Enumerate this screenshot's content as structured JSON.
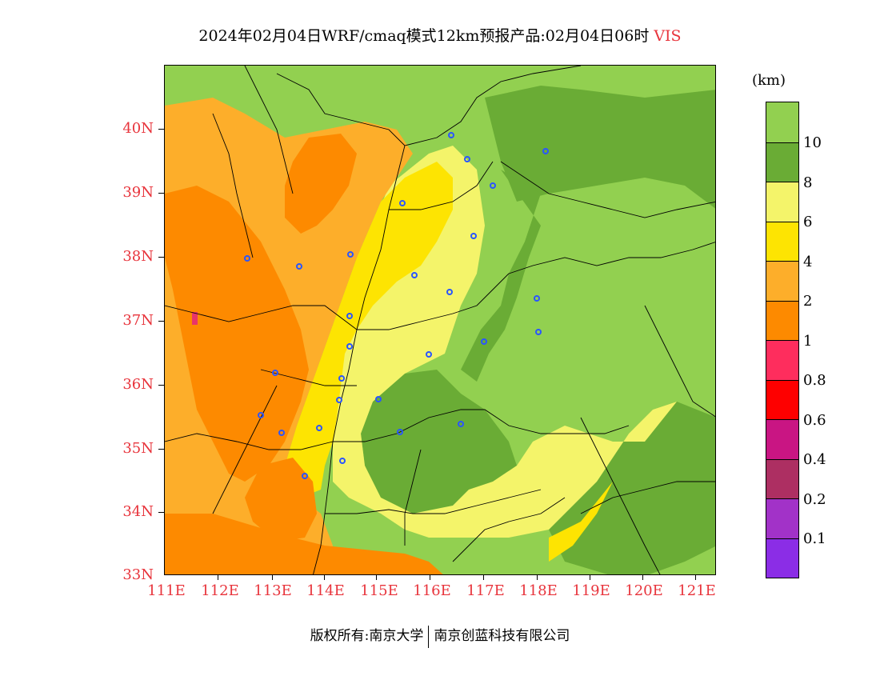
{
  "header": {
    "title": "2024年02月04日WRF/cmaq模式12km预报产品:02月04日06时",
    "variable": "VIS"
  },
  "map": {
    "lat_labels": [
      "40N",
      "39N",
      "38N",
      "37N",
      "36N",
      "35N",
      "34N",
      "33N"
    ],
    "lon_labels": [
      "111E",
      "112E",
      "113E",
      "114E",
      "115E",
      "116E",
      "117E",
      "118E",
      "119E",
      "120E",
      "121E"
    ],
    "colors": {
      "vis_gt_10": "#92d050",
      "vis_8_10": "#6aac35",
      "vis_6_8": "#f4f46a",
      "vis_4_6": "#fde402",
      "vis_2_4": "#fdae2a",
      "vis_1_2": "#fd8a00",
      "station_marker": "#2a55ff"
    }
  },
  "legend": {
    "unit": "(km)",
    "labels": [
      "10",
      "8",
      "6",
      "4",
      "2",
      "1",
      "0.8",
      "0.6",
      "0.4",
      "0.2",
      "0.1"
    ],
    "colors": [
      "#92d050",
      "#6aac35",
      "#f4f46a",
      "#fde402",
      "#fdae2a",
      "#fd8a00",
      "#fe2d5d",
      "#fe0000",
      "#c91583",
      "#ad2f62",
      "#a232c8",
      "#8b2de6"
    ]
  },
  "footer": {
    "copyright": "版权所有:南京大学",
    "company": "南京创蓝科技有限公司"
  }
}
